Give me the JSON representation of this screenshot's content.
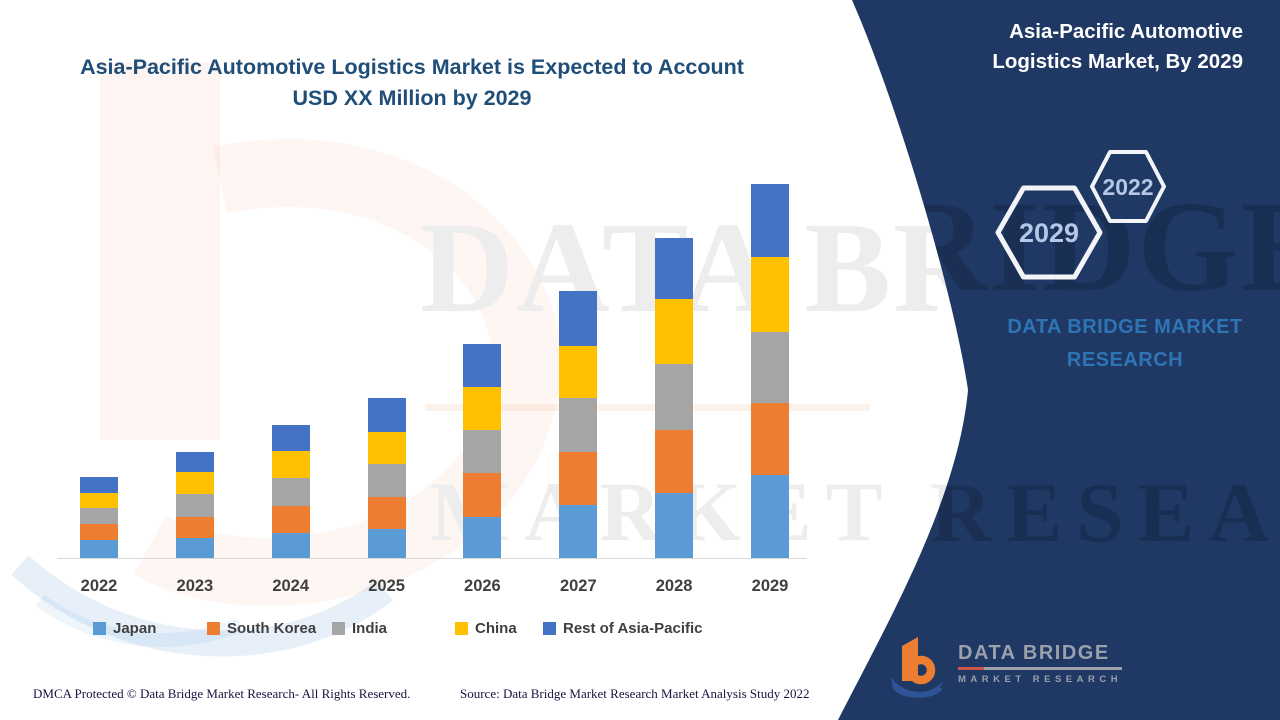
{
  "page": {
    "main_title_line1": "Asia-Pacific Automotive Logistics Market is Expected to Account",
    "main_title_line2": "USD XX Million by 2029",
    "sidebar": {
      "title_line1": "Asia-Pacific Automotive",
      "title_line2": "Logistics Market, By 2029",
      "hex_large_label": "2029",
      "hex_small_label": "2022",
      "brand_line1": "DATA BRIDGE MARKET",
      "brand_line2": "RESEARCH",
      "bg_color": "#1F3864",
      "brand_text_color": "#2E75B6",
      "hex_label_color": "#B4C7E7"
    },
    "logo": {
      "name": "DATA BRIDGE",
      "sub": "MARKET RESEARCH"
    },
    "footer": {
      "left": "DMCA Protected © Data Bridge Market Research- All Rights Reserved.",
      "right": "Source: Data Bridge Market Research Market Analysis Study 2022"
    },
    "watermark": {
      "line1": "DATA BRIDGE",
      "line2": "MARKET RESEARCH"
    }
  },
  "chart_data": {
    "type": "bar",
    "stacked": true,
    "title": "Asia-Pacific Automotive Logistics Market is Expected to Account USD XX Million by 2029",
    "xlabel": "",
    "ylabel": "",
    "grid": false,
    "legend_position": "bottom",
    "y_axis": {
      "visible": false,
      "note": "market values undisclosed (USD XX Million); series values are relative estimates read from bar heights"
    },
    "categories": [
      "2022",
      "2023",
      "2024",
      "2025",
      "2026",
      "2027",
      "2028",
      "2029"
    ],
    "series": [
      {
        "name": "Japan",
        "color": "#5B9BD5",
        "values": [
          18,
          20,
          25,
          29,
          41,
          53,
          65,
          83
        ]
      },
      {
        "name": "South Korea",
        "color": "#ED7D31",
        "values": [
          16,
          21,
          27,
          32,
          44,
          53,
          63,
          72
        ]
      },
      {
        "name": "India",
        "color": "#A5A5A5",
        "values": [
          16,
          23,
          28,
          33,
          43,
          54,
          66,
          71
        ]
      },
      {
        "name": "China",
        "color": "#FFC000",
        "values": [
          15,
          22,
          27,
          32,
          43,
          52,
          65,
          75
        ]
      },
      {
        "name": "Rest of Asia-Pacific",
        "color": "#4472C4",
        "values": [
          16,
          20,
          26,
          34,
          43,
          55,
          61,
          73
        ]
      }
    ],
    "totals": [
      81,
      106,
      133,
      160,
      214,
      267,
      320,
      374
    ]
  }
}
